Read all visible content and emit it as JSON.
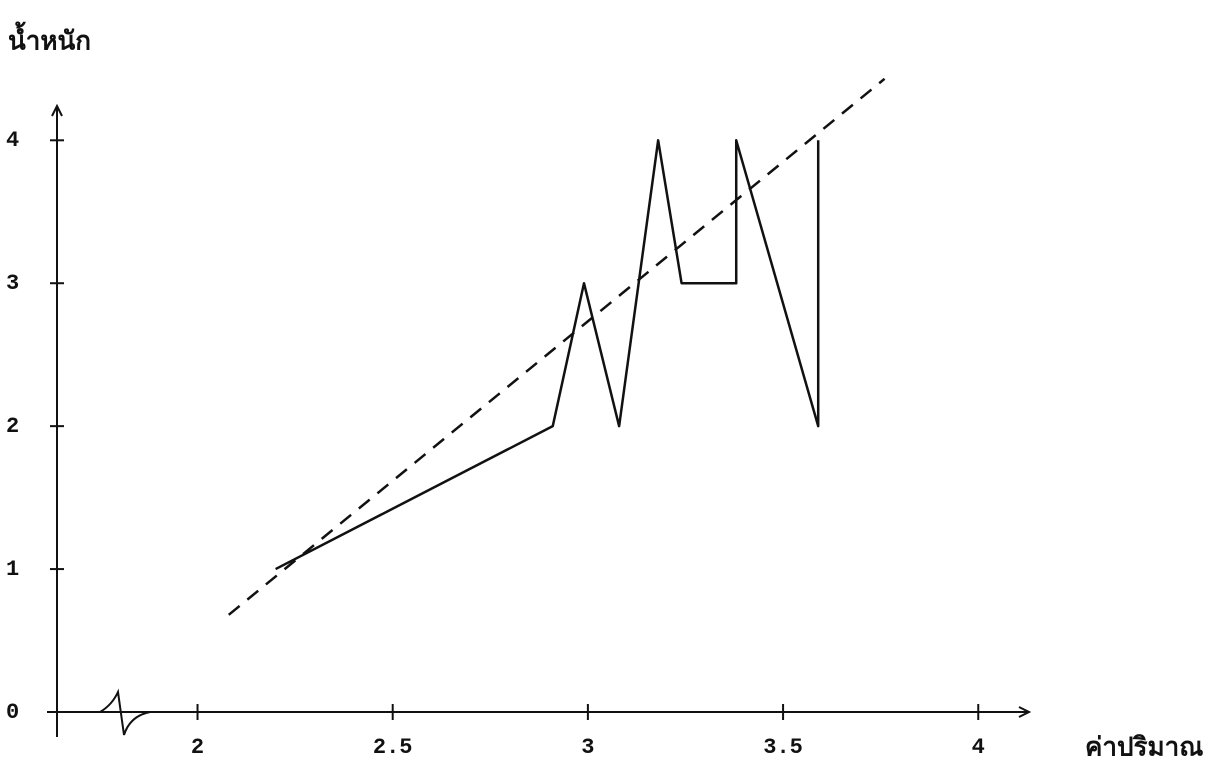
{
  "chart_data": {
    "type": "line",
    "y_label": "น้ำหนัก",
    "x_label": "ค่าปริมาณ",
    "xlim": [
      1.64,
      4.13
    ],
    "ylim": [
      0,
      4.24
    ],
    "xticks": [
      2,
      2.5,
      3,
      3.5,
      4
    ],
    "yticks": [
      0,
      1,
      2,
      3,
      4
    ],
    "series": [
      {
        "color": "#111111",
        "style": "solid",
        "x": [
          2.2,
          2.91,
          2.99,
          3.08,
          3.18,
          3.24,
          3.38,
          3.38,
          3.59,
          3.59
        ],
        "values": [
          1,
          2,
          3,
          2,
          4,
          3,
          3,
          4,
          2,
          4
        ]
      },
      {
        "color": "#111111",
        "style": "dashed",
        "x": [
          2.08,
          3.76
        ],
        "values": [
          0.68,
          4.43
        ]
      }
    ]
  }
}
